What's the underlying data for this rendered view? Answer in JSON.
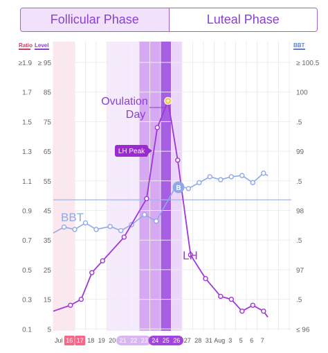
{
  "phases": {
    "follicular": "Follicular Phase",
    "luteal": "Luteal Phase"
  },
  "chart_data": {
    "type": "line",
    "left_axis_headers": {
      "ratio": "Ratio",
      "level": "Level"
    },
    "right_axis_header": "BBT",
    "ratio_ticks": [
      "≥1.9",
      "1.7",
      "1.5",
      "1.3",
      "1.1",
      "0.9",
      "0.7",
      "0.5",
      "0.3",
      "0.1"
    ],
    "level_ticks": [
      "≥ 95",
      "85",
      "75",
      "65",
      "55",
      "45",
      "35",
      "25",
      "15",
      "5"
    ],
    "bbt_ticks": [
      "≥ 100.5",
      "100",
      ".5",
      "99",
      ".5",
      "98",
      ".5",
      "97",
      ".5",
      "≤ 96"
    ],
    "x_ticks": [
      {
        "day": 0,
        "label": "Jul"
      },
      {
        "day": 1,
        "label": "16"
      },
      {
        "day": 2,
        "label": "17"
      },
      {
        "day": 3,
        "label": "18"
      },
      {
        "day": 4,
        "label": "19"
      },
      {
        "day": 5,
        "label": "20"
      },
      {
        "day": 6,
        "label": "21"
      },
      {
        "day": 7,
        "label": "22"
      },
      {
        "day": 8,
        "label": "23"
      },
      {
        "day": 9,
        "label": "24"
      },
      {
        "day": 10,
        "label": "25"
      },
      {
        "day": 11,
        "label": "26"
      },
      {
        "day": 12,
        "label": "27"
      },
      {
        "day": 13,
        "label": "28"
      },
      {
        "day": 14,
        "label": "31"
      },
      {
        "day": 15,
        "label": "Aug"
      },
      {
        "day": 16,
        "label": "3"
      },
      {
        "day": 17,
        "label": "5"
      },
      {
        "day": 18,
        "label": "6"
      },
      {
        "day": 19,
        "label": "7"
      }
    ],
    "period_days": [
      "16",
      "17"
    ],
    "fertile_days": [
      "21",
      "22",
      "23"
    ],
    "peak_days": [
      "24",
      "25",
      "26"
    ],
    "ovulation_day": "26",
    "series": [
      {
        "name": "BBT",
        "color": "#8fa9e8",
        "points": [
          {
            "day": 0,
            "bbt": 97.62
          },
          {
            "day": 1,
            "bbt": 97.72
          },
          {
            "day": 2,
            "bbt": 97.68
          },
          {
            "day": 3,
            "bbt": 97.79
          },
          {
            "day": 4,
            "bbt": 97.68
          },
          {
            "day": 5.3,
            "bbt": 97.73
          },
          {
            "day": 6.3,
            "bbt": 97.66
          },
          {
            "day": 7.3,
            "bbt": 97.76
          },
          {
            "day": 8.5,
            "bbt": 97.93
          },
          {
            "day": 9.6,
            "bbt": 97.82
          },
          {
            "day": 11.5,
            "bbt": 98.43
          },
          {
            "day": 12.6,
            "bbt": 98.37
          },
          {
            "day": 13.6,
            "bbt": 98.47
          },
          {
            "day": 14.6,
            "bbt": 98.57
          },
          {
            "day": 15.6,
            "bbt": 98.52
          },
          {
            "day": 16.6,
            "bbt": 98.57
          },
          {
            "day": 17.6,
            "bbt": 98.59
          },
          {
            "day": 18.6,
            "bbt": 98.47
          },
          {
            "day": 19.6,
            "bbt": 98.63
          },
          {
            "day": 20,
            "bbt": 98.59
          }
        ]
      },
      {
        "name": "LH",
        "color": "#a036d4",
        "points": [
          {
            "day": 0,
            "level": 11
          },
          {
            "day": 1.6,
            "level": 13
          },
          {
            "day": 2.6,
            "level": 15
          },
          {
            "day": 3.6,
            "level": 24
          },
          {
            "day": 4.6,
            "level": 28
          },
          {
            "day": 6.6,
            "level": 36
          },
          {
            "day": 8.7,
            "level": 49
          },
          {
            "day": 9.7,
            "level": 73
          },
          {
            "day": 10.7,
            "level": 82
          },
          {
            "day": 11.6,
            "level": 62
          },
          {
            "day": 12.8,
            "level": 30
          },
          {
            "day": 14.2,
            "level": 22
          },
          {
            "day": 15.6,
            "level": 16
          },
          {
            "day": 16.6,
            "level": 15
          },
          {
            "day": 17.6,
            "level": 11
          },
          {
            "day": 18.6,
            "level": 13
          },
          {
            "day": 19.6,
            "level": 11
          },
          {
            "day": 20,
            "level": 9
          }
        ]
      }
    ],
    "baseline_bbt": 98.18,
    "lh_peak": {
      "day": 10.7,
      "level": 82
    },
    "annotations": {
      "ovulation_line1": "Ovulation",
      "ovulation_line2": "Day",
      "lh_peak_label": "LH Peak",
      "bbt_label": "BBT",
      "lh_label": "LH",
      "b_marker": "B"
    }
  }
}
